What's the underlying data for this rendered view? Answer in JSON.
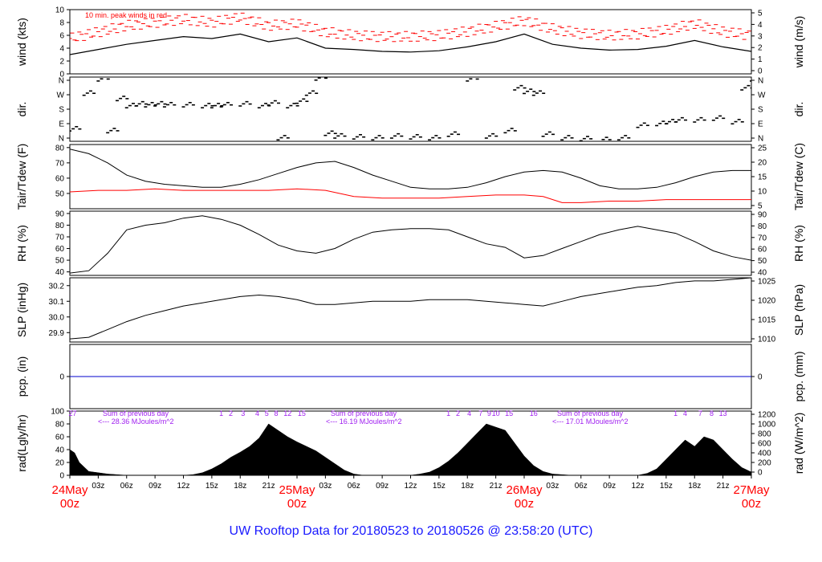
{
  "title": "UW Rooftop Data for 20180523  to  20180526 @ 23:58:20  (UTC)",
  "colors": {
    "trace": "#000000",
    "red": "#ff0000",
    "blue": "#0000cc",
    "purple": "#a020f0",
    "frame": "#000000"
  },
  "x_axis": {
    "unit": "hours since 24May 00z",
    "range": [
      0,
      72
    ],
    "minor_ticks": [
      "03z",
      "06z",
      "09z",
      "12z",
      "15z",
      "18z",
      "21z",
      "03z",
      "06z",
      "09z",
      "12z",
      "15z",
      "18z",
      "21z",
      "03z",
      "06z",
      "09z",
      "12z",
      "15z",
      "18z",
      "21z"
    ],
    "date_labels": [
      {
        "day": "24May",
        "hour": "00z"
      },
      {
        "day": "25May",
        "hour": "00z"
      },
      {
        "day": "26May",
        "hour": "00z"
      },
      {
        "day": "27May",
        "hour": "00z"
      }
    ]
  },
  "chart_data": [
    {
      "type": "line",
      "ylabel": "wind (kts)",
      "ylabel_right": "wind (m/s)",
      "ylim": [
        0,
        10
      ],
      "yticks_left": [
        "0",
        "2",
        "4",
        "6",
        "8",
        "10"
      ],
      "yticks_right": [
        "0",
        "1",
        "2",
        "3",
        "4",
        "5"
      ],
      "annotation": "10 min. peak winds in red",
      "series": [
        {
          "name": "wind",
          "color": "#000000",
          "x": [
            0,
            3,
            6,
            9,
            12,
            15,
            18,
            21,
            24,
            27,
            30,
            33,
            36,
            39,
            42,
            45,
            48,
            51,
            54,
            57,
            60,
            63,
            66,
            69,
            72
          ],
          "y": [
            3.0,
            3.8,
            4.6,
            5.2,
            5.8,
            5.5,
            6.2,
            5.0,
            5.6,
            4.0,
            3.8,
            3.5,
            3.4,
            3.6,
            4.2,
            5.0,
            6.2,
            4.6,
            4.0,
            3.7,
            3.8,
            4.3,
            5.2,
            4.2,
            3.5
          ]
        },
        {
          "name": "peak",
          "color": "#ff0000",
          "x": [
            0,
            3,
            6,
            9,
            12,
            15,
            18,
            21,
            24,
            27,
            30,
            33,
            36,
            39,
            42,
            45,
            48,
            51,
            54,
            57,
            60,
            63,
            66,
            69,
            72
          ],
          "y": [
            5.5,
            6.5,
            7.5,
            8.0,
            8.5,
            8.0,
            8.8,
            7.5,
            7.8,
            6.5,
            6.0,
            5.8,
            5.8,
            6.0,
            6.6,
            7.4,
            8.3,
            7.0,
            6.3,
            6.0,
            6.2,
            6.8,
            7.8,
            6.6,
            6.0
          ]
        }
      ]
    },
    {
      "type": "scatter",
      "ylabel": "dir.",
      "ylabel_right": "dir.",
      "ylim": [
        0,
        360
      ],
      "yticks_left": [
        "N",
        "E",
        "S",
        "W",
        "N"
      ],
      "yticks_right": [
        "N",
        "E",
        "S",
        "W",
        "N"
      ],
      "series": [
        {
          "name": "direction",
          "color": "#000000",
          "x": [
            0,
            1.5,
            3,
            4,
            5,
            6,
            7,
            8,
            9,
            10,
            12,
            14,
            15,
            16,
            18,
            20,
            21,
            22,
            23,
            24,
            25,
            26,
            27,
            28,
            30,
            32,
            34,
            36,
            38,
            40,
            42,
            44,
            46,
            47,
            48,
            49,
            50,
            52,
            54,
            56,
            58,
            60,
            62,
            63,
            64,
            66,
            68,
            70,
            71,
            72
          ],
          "y": [
            70,
            270,
            350,
            60,
            240,
            200,
            210,
            205,
            210,
            205,
            205,
            200,
            200,
            205,
            210,
            200,
            215,
            20,
            200,
            225,
            270,
            355,
            45,
            30,
            25,
            20,
            30,
            25,
            20,
            40,
            350,
            30,
            60,
            300,
            280,
            270,
            40,
            20,
            15,
            10,
            20,
            90,
            100,
            110,
            120,
            120,
            130,
            110,
            300,
            350
          ]
        }
      ]
    },
    {
      "type": "line",
      "ylabel": "Tair/Tdew (F)",
      "ylabel_right": "Tair/Tdew (C)",
      "ylim": [
        40,
        82
      ],
      "yticks_left": [
        "50",
        "60",
        "70",
        "80"
      ],
      "yticks_right": [
        "5",
        "10",
        "15",
        "20",
        "25"
      ],
      "series": [
        {
          "name": "Tair",
          "color": "#000000",
          "x": [
            0,
            2,
            4,
            6,
            8,
            10,
            12,
            14,
            16,
            18,
            20,
            22,
            24,
            26,
            28,
            30,
            32,
            34,
            36,
            38,
            40,
            42,
            44,
            46,
            48,
            50,
            52,
            54,
            56,
            58,
            60,
            62,
            64,
            66,
            68,
            70,
            72
          ],
          "y": [
            79,
            76,
            70,
            62,
            58,
            56,
            55,
            54,
            54,
            56,
            59,
            63,
            67,
            70,
            71,
            67,
            62,
            58,
            54,
            53,
            53,
            54,
            57,
            61,
            64,
            65,
            64,
            60,
            55,
            53,
            53,
            54,
            57,
            61,
            64,
            65,
            65
          ]
        },
        {
          "name": "Tdew",
          "color": "#ff0000",
          "x": [
            0,
            3,
            6,
            9,
            12,
            15,
            18,
            21,
            24,
            27,
            30,
            33,
            36,
            39,
            42,
            45,
            48,
            50,
            52,
            54,
            57,
            60,
            63,
            66,
            69,
            72
          ],
          "y": [
            51,
            52,
            52,
            53,
            52,
            52,
            52,
            52,
            53,
            52,
            48,
            47,
            47,
            47,
            48,
            49,
            49,
            48,
            44,
            44,
            45,
            45,
            46,
            46,
            46,
            46
          ]
        }
      ]
    },
    {
      "type": "line",
      "ylabel": "RH (%)",
      "ylabel_right": "RH (%)",
      "ylim": [
        37,
        92
      ],
      "yticks_left": [
        "40",
        "50",
        "60",
        "70",
        "80",
        "90"
      ],
      "yticks_right": [
        "40",
        "50",
        "60",
        "70",
        "80",
        "90"
      ],
      "series": [
        {
          "name": "RH",
          "color": "#000000",
          "x": [
            0,
            2,
            4,
            6,
            8,
            10,
            12,
            14,
            16,
            18,
            20,
            22,
            24,
            26,
            28,
            30,
            32,
            34,
            36,
            38,
            40,
            42,
            44,
            46,
            48,
            50,
            52,
            54,
            56,
            58,
            60,
            62,
            64,
            66,
            68,
            70,
            72
          ],
          "y": [
            39,
            41,
            56,
            76,
            80,
            82,
            86,
            88,
            85,
            80,
            72,
            63,
            58,
            56,
            60,
            68,
            74,
            76,
            77,
            77,
            76,
            70,
            64,
            61,
            52,
            54,
            60,
            66,
            72,
            76,
            79,
            76,
            73,
            66,
            58,
            53,
            50
          ]
        }
      ]
    },
    {
      "type": "line",
      "ylabel": "SLP (inHg)",
      "ylabel_right": "SLP (hPa)",
      "ylim": [
        29.84,
        30.25
      ],
      "yticks_left": [
        "29.9",
        "30.0",
        "30.1",
        "30.2"
      ],
      "yticks_right": [
        "1010",
        "1015",
        "1020",
        "1025"
      ],
      "series": [
        {
          "name": "SLP",
          "color": "#000000",
          "x": [
            0,
            2,
            4,
            6,
            8,
            10,
            12,
            14,
            16,
            18,
            20,
            22,
            24,
            26,
            28,
            30,
            32,
            34,
            36,
            38,
            40,
            42,
            44,
            46,
            48,
            50,
            52,
            54,
            56,
            58,
            60,
            62,
            64,
            66,
            68,
            70,
            72
          ],
          "y": [
            29.86,
            29.87,
            29.92,
            29.97,
            30.01,
            30.04,
            30.07,
            30.09,
            30.11,
            30.13,
            30.14,
            30.13,
            30.11,
            30.08,
            30.08,
            30.09,
            30.1,
            30.1,
            30.1,
            30.11,
            30.11,
            30.11,
            30.1,
            30.09,
            30.08,
            30.07,
            30.1,
            30.13,
            30.15,
            30.17,
            30.19,
            30.2,
            30.22,
            30.23,
            30.23,
            30.24,
            30.25
          ]
        }
      ]
    },
    {
      "type": "line",
      "ylabel": "pcp. (in)",
      "ylabel_right": "pcp. (mm)",
      "ylim": [
        -1,
        1
      ],
      "yticks_left": [
        "0"
      ],
      "yticks_right": [
        "0"
      ],
      "series": [
        {
          "name": "pcp",
          "color": "#0000cc",
          "x": [
            0,
            72
          ],
          "y": [
            0,
            0
          ]
        }
      ]
    },
    {
      "type": "area",
      "ylabel": "rad(Lgly/hr)",
      "ylabel_right": "rad (W/m^2)",
      "ylim": [
        0,
        100
      ],
      "yticks_left": [
        "0",
        "20",
        "40",
        "60",
        "80",
        "100"
      ],
      "yticks_right": [
        "0",
        "200",
        "400",
        "600",
        "800",
        "1000",
        "1200"
      ],
      "series": [
        {
          "name": "radiation",
          "color": "#000000",
          "x": [
            0,
            0.5,
            1,
            2,
            3,
            4,
            5,
            6,
            7,
            12,
            13,
            14,
            15,
            16,
            17,
            18,
            19,
            20,
            21,
            22,
            23,
            24,
            25,
            26,
            27,
            28,
            29,
            30,
            31,
            36,
            37,
            38,
            39,
            40,
            41,
            42,
            43,
            44,
            45,
            46,
            47,
            48,
            49,
            50,
            51,
            52,
            53,
            54,
            55,
            60,
            61,
            62,
            63,
            64,
            65,
            66,
            67,
            68,
            69,
            70,
            71,
            72
          ],
          "y": [
            40,
            35,
            20,
            6,
            4,
            2,
            1,
            0,
            0,
            0,
            1,
            4,
            10,
            18,
            28,
            36,
            45,
            58,
            80,
            70,
            60,
            52,
            45,
            38,
            28,
            18,
            8,
            2,
            0,
            0,
            2,
            5,
            12,
            22,
            35,
            50,
            65,
            80,
            75,
            70,
            50,
            30,
            15,
            6,
            2,
            1,
            0,
            0,
            0,
            0,
            3,
            10,
            25,
            40,
            55,
            45,
            60,
            55,
            40,
            25,
            12,
            5
          ]
        }
      ],
      "annotations": [
        {
          "label": "Sum of previous day",
          "value": "<--- 28.36 MJoules/m^2"
        },
        {
          "label": "Sum of previous day",
          "value": "<--- 16.19 MJoules/m^2"
        },
        {
          "label": "Sum of previous day",
          "value": "<--- 17.01 MJoules/m^2"
        }
      ],
      "uv_labels": [
        {
          "x": 0.3,
          "text": "27"
        },
        {
          "x": 16.0,
          "text": "1"
        },
        {
          "x": 17.0,
          "text": "2"
        },
        {
          "x": 18.3,
          "text": "3"
        },
        {
          "x": 19.8,
          "text": "4"
        },
        {
          "x": 20.8,
          "text": "5"
        },
        {
          "x": 21.8,
          "text": "8"
        },
        {
          "x": 23.0,
          "text": "12"
        },
        {
          "x": 24.5,
          "text": "15"
        },
        {
          "x": 40.0,
          "text": "1"
        },
        {
          "x": 41.0,
          "text": "2"
        },
        {
          "x": 42.2,
          "text": "4"
        },
        {
          "x": 43.4,
          "text": "7"
        },
        {
          "x": 44.3,
          "text": "9"
        },
        {
          "x": 45.0,
          "text": "10"
        },
        {
          "x": 46.4,
          "text": "15"
        },
        {
          "x": 49.0,
          "text": "16"
        },
        {
          "x": 64.0,
          "text": "1"
        },
        {
          "x": 65.0,
          "text": "4"
        },
        {
          "x": 66.6,
          "text": "7"
        },
        {
          "x": 67.8,
          "text": "8"
        },
        {
          "x": 69.0,
          "text": "13"
        }
      ]
    }
  ]
}
